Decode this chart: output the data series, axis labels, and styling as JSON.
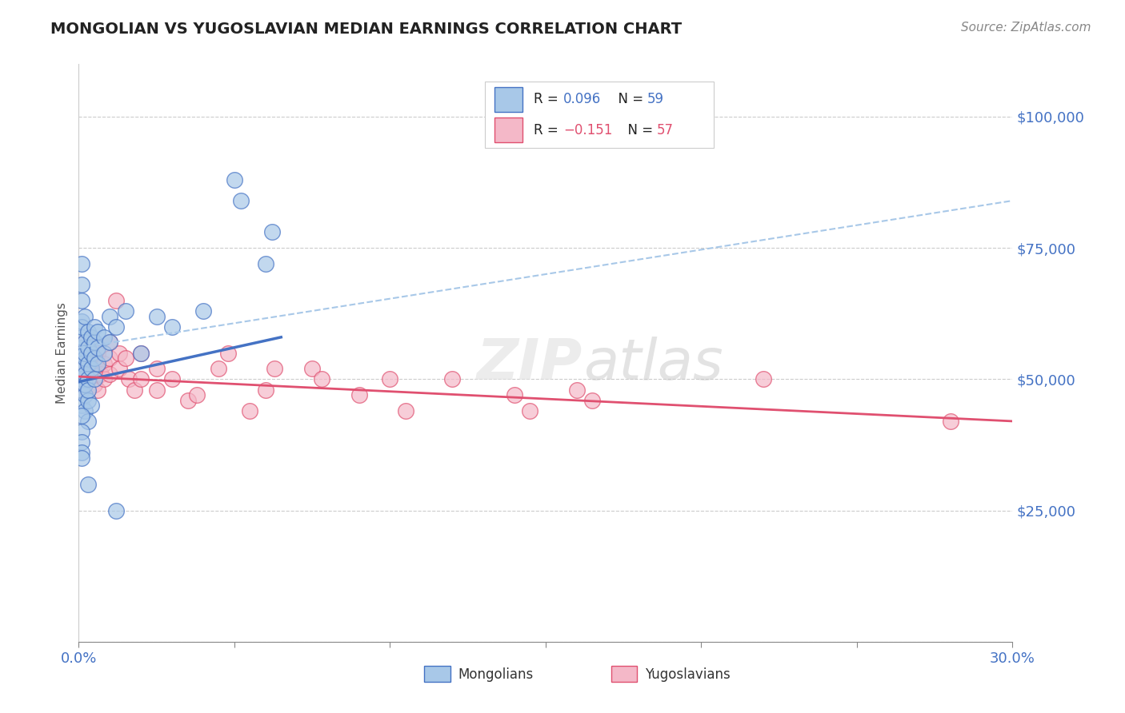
{
  "title": "MONGOLIAN VS YUGOSLAVIAN MEDIAN EARNINGS CORRELATION CHART",
  "source": "Source: ZipAtlas.com",
  "ylabel": "Median Earnings",
  "xlim": [
    0.0,
    0.3
  ],
  "ylim": [
    0,
    110000
  ],
  "mongolian_color": "#a8c8e8",
  "mongolian_edge": "#4472c4",
  "yugoslavian_color": "#f4b8c8",
  "yugoslavian_edge": "#e05070",
  "blue_color": "#4472c4",
  "pink_color": "#e05070",
  "dash_color": "#a8c8e8",
  "mongolian_R": 0.096,
  "mongolian_N": 59,
  "yugoslavian_R": -0.151,
  "yugoslavian_N": 57,
  "watermark": "ZIPatlas",
  "mongo_trend_x": [
    0.0,
    0.065
  ],
  "mongo_trend_y": [
    49500,
    58000
  ],
  "dash_trend_x": [
    0.0,
    0.3
  ],
  "dash_trend_y": [
    56000,
    84000
  ],
  "yugo_trend_x": [
    0.0,
    0.3
  ],
  "yugo_trend_y": [
    50500,
    42000
  ]
}
